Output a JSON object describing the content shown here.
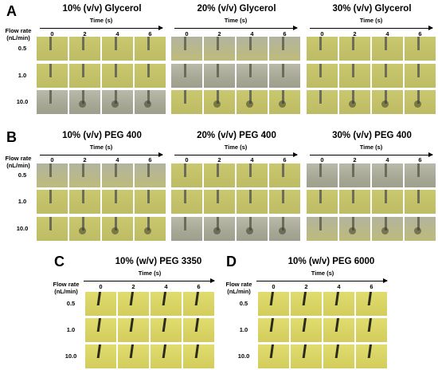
{
  "panels": [
    {
      "letter": "A",
      "titles": [
        "10% (v/v) Glycerol",
        "20% (v/v) Glycerol",
        "30% (v/v) Glycerol"
      ]
    },
    {
      "letter": "B",
      "titles": [
        "10% (v/v) PEG 400",
        "20% (v/v) PEG 400",
        "30% (v/v) PEG 400"
      ]
    },
    {
      "letter": "C",
      "titles": [
        "10% (w/v) PEG 3350"
      ]
    },
    {
      "letter": "D",
      "titles": [
        "10% (w/v) PEG 6000"
      ]
    }
  ],
  "axis": {
    "time_label": "Time (s)",
    "time_ticks": [
      "0",
      "2",
      "4",
      "6"
    ],
    "flow_label_line1": "Flow rate",
    "flow_label_line2": "(nL/min)",
    "flow_rates": [
      "0.5",
      "1.0",
      "10.0"
    ]
  },
  "colors": {
    "yellow": "#c4c268",
    "grey": "#a9aa98",
    "bright_yellow": "#d8d366"
  }
}
